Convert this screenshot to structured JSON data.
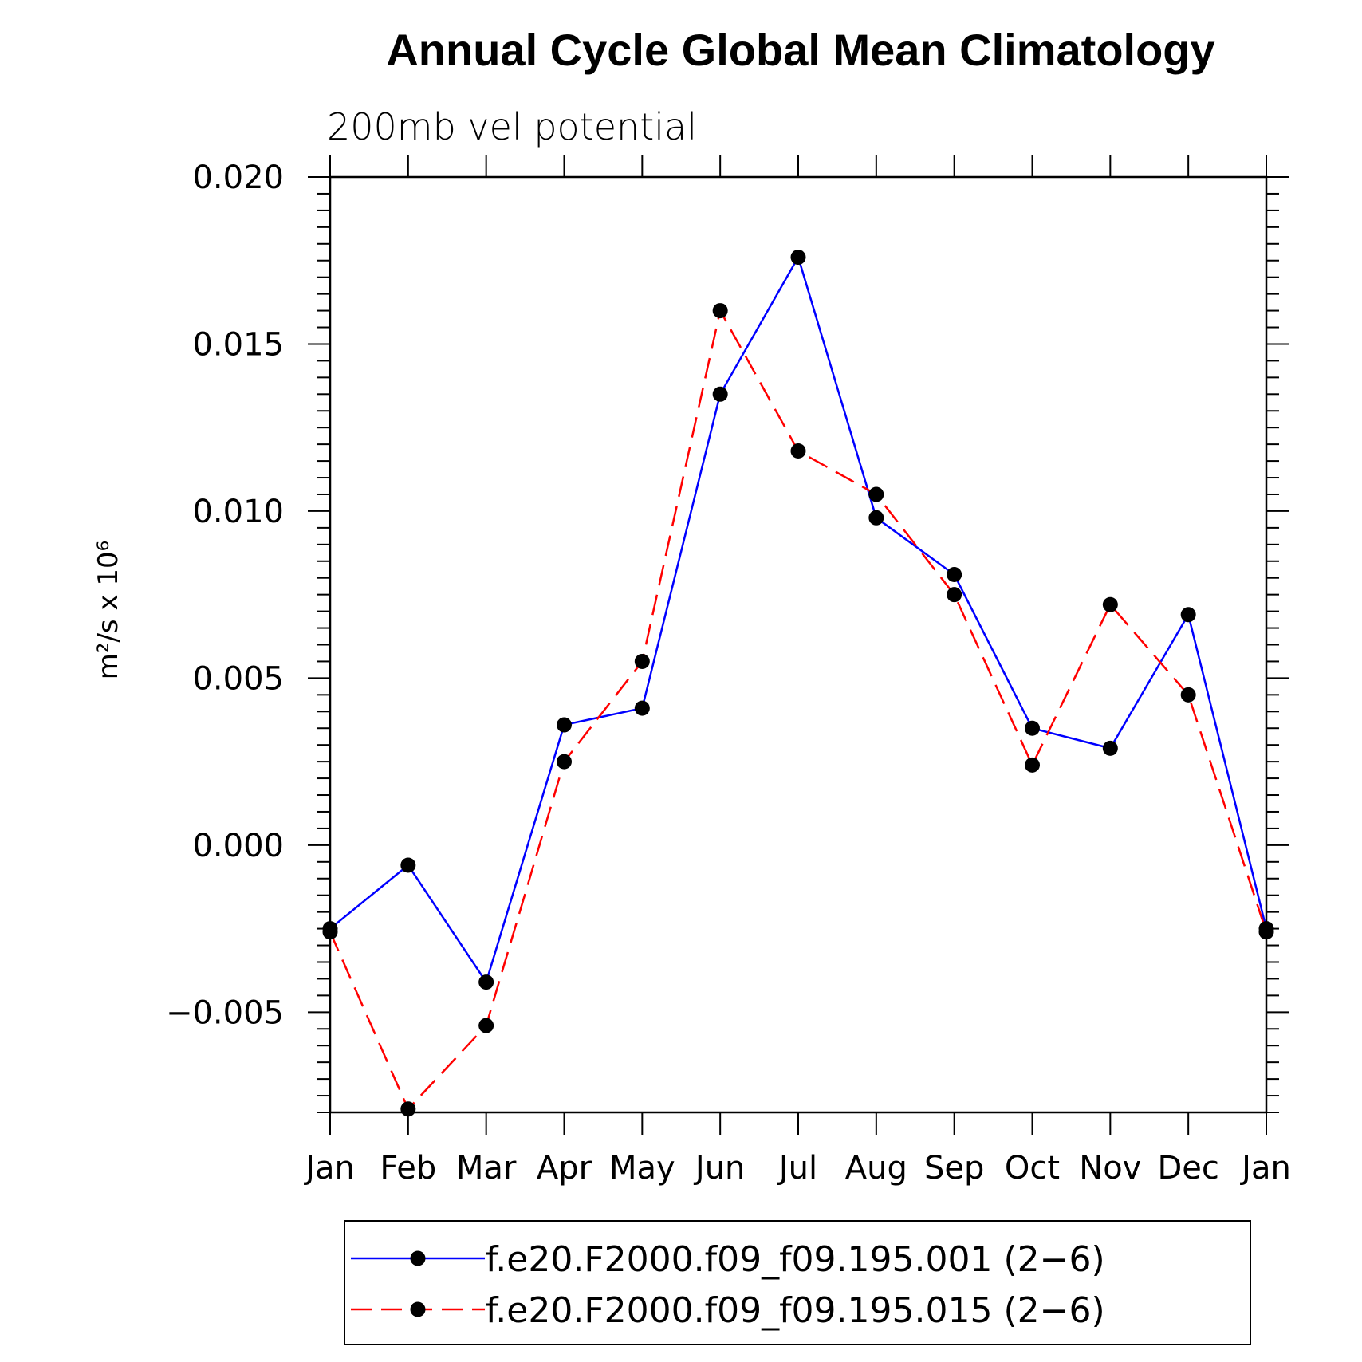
{
  "chart_data": {
    "type": "line",
    "title": "Annual Cycle Global Mean Climatology",
    "subtitle": "200mb vel potential",
    "ylabel": "m²/s x 10⁶",
    "xlabel": "",
    "categories": [
      "Jan",
      "Feb",
      "Mar",
      "Apr",
      "May",
      "Jun",
      "Jul",
      "Aug",
      "Sep",
      "Oct",
      "Nov",
      "Dec",
      "Jan"
    ],
    "ylim": [
      -0.008,
      0.02
    ],
    "yticks": [
      "0.020",
      "0.015",
      "0.010",
      "0.005",
      "0.000",
      "−0.005"
    ],
    "ytick_values": [
      0.02,
      0.015,
      0.01,
      0.005,
      0.0,
      -0.005
    ],
    "series": [
      {
        "name": "f.e20.F2000.f09_f09.195.001 (2−6)",
        "color": "#0000ff",
        "dash": "solid",
        "values": [
          -0.0025,
          -0.0006,
          -0.0041,
          0.0036,
          0.0041,
          0.0135,
          0.0176,
          0.0098,
          0.0081,
          0.0035,
          0.0029,
          0.0069,
          -0.0025
        ]
      },
      {
        "name": "f.e20.F2000.f09_f09.195.015 (2−6)",
        "color": "#ff0000",
        "dash": "dashed",
        "values": [
          -0.0026,
          -0.0079,
          -0.0054,
          0.0025,
          0.0055,
          0.016,
          0.0118,
          0.0105,
          0.0075,
          0.0024,
          0.0072,
          0.0045,
          -0.0026
        ]
      }
    ],
    "grid": false,
    "legend_position": "bottom"
  }
}
